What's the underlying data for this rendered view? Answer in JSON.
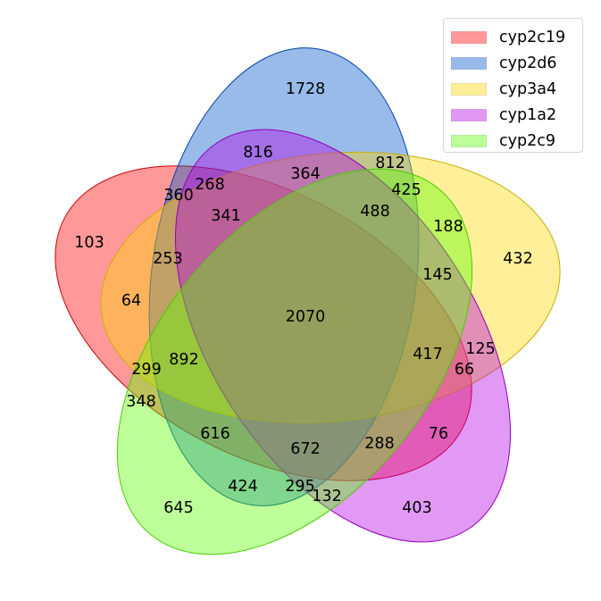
{
  "sets": [
    {
      "name": "cyp2c19",
      "fill": "#ff0000",
      "stroke": "#cc0000"
    },
    {
      "name": "cyp2d6",
      "fill": "#0055c8",
      "stroke": "#0044aa"
    },
    {
      "name": "cyp3a4",
      "fill": "#ffd700",
      "stroke": "#ccad00"
    },
    {
      "name": "cyp1a2",
      "fill": "#b400e6",
      "stroke": "#9000b8"
    },
    {
      "name": "cyp2c9",
      "fill": "#5aff00",
      "stroke": "#48cc00"
    }
  ],
  "regions": [
    {
      "id": "A",
      "value": "103"
    },
    {
      "id": "B",
      "value": "1728"
    },
    {
      "id": "C",
      "value": "432"
    },
    {
      "id": "D",
      "value": "403"
    },
    {
      "id": "E",
      "value": "645"
    },
    {
      "id": "AB",
      "value": "360"
    },
    {
      "id": "AC",
      "value": "64"
    },
    {
      "id": "AD",
      "value": "132"
    },
    {
      "id": "AE",
      "value": "348"
    },
    {
      "id": "BC",
      "value": "812"
    },
    {
      "id": "BD",
      "value": "816"
    },
    {
      "id": "BE",
      "value": "424"
    },
    {
      "id": "CD",
      "value": "125"
    },
    {
      "id": "CE",
      "value": "188"
    },
    {
      "id": "DE",
      "value": "76"
    },
    {
      "id": "ABC",
      "value": "268"
    },
    {
      "id": "ABD",
      "value": "364"
    },
    {
      "id": "ACE",
      "value": "299"
    },
    {
      "id": "BCE",
      "value": "425"
    },
    {
      "id": "ADE",
      "value": "295"
    },
    {
      "id": "ABCD",
      "value": "341"
    },
    {
      "id": "ABCE",
      "value": "253"
    },
    {
      "id": "ABDE",
      "value": "616"
    },
    {
      "id": "ACDE",
      "value": "66"
    },
    {
      "id": "BCDE",
      "value": "145"
    },
    {
      "id": "BCD",
      "value": "488"
    },
    {
      "id": "CDE",
      "value": "417"
    },
    {
      "id": "ABE",
      "value": "892"
    },
    {
      "id": "ADE2",
      "value": "288"
    },
    {
      "id": "BDE",
      "value": "672"
    },
    {
      "id": "ABCDE",
      "value": "2070"
    }
  ]
}
